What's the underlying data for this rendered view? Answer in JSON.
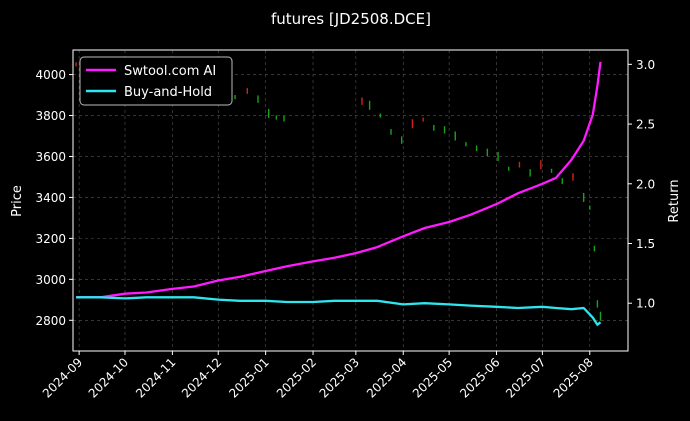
{
  "chart_data": {
    "type": "line",
    "title": "futures [JD2508.DCE]",
    "ylabel_left": "Price",
    "ylabel_right": "Return",
    "ylim_left": [
      2650,
      4120
    ],
    "ylim_right": [
      0.6,
      3.12
    ],
    "xlim": [
      "2024-08-28",
      "2025-08-26"
    ],
    "yticks_left": [
      2800,
      3000,
      3200,
      3400,
      3600,
      3800,
      4000
    ],
    "yticks_right": [
      1.0,
      1.5,
      2.0,
      2.5,
      3.0
    ],
    "yticks_right_labels": [
      "1.0",
      "1.5",
      "2.0",
      "2.5",
      "3.0"
    ],
    "xticks": [
      "2024-09",
      "2024-10",
      "2024-11",
      "2024-12",
      "2025-01",
      "2025-02",
      "2025-03",
      "2025-04",
      "2025-05",
      "2025-06",
      "2025-07",
      "2025-08"
    ],
    "grid": true,
    "legend_position": "top-left",
    "series": [
      {
        "name": "Swtool.com AI",
        "color": "#ff1aff",
        "axis": "right",
        "x": [
          "2024-08-30",
          "2024-09-15",
          "2024-10-01",
          "2024-10-15",
          "2024-11-01",
          "2024-11-15",
          "2024-12-01",
          "2024-12-15",
          "2025-01-01",
          "2025-01-15",
          "2025-02-01",
          "2025-02-15",
          "2025-03-01",
          "2025-03-15",
          "2025-04-01",
          "2025-04-15",
          "2025-05-01",
          "2025-05-15",
          "2025-06-01",
          "2025-06-15",
          "2025-07-01",
          "2025-07-10",
          "2025-07-20",
          "2025-07-28",
          "2025-08-03",
          "2025-08-06",
          "2025-08-08"
        ],
        "values": [
          1.05,
          1.05,
          1.08,
          1.09,
          1.12,
          1.14,
          1.19,
          1.22,
          1.27,
          1.31,
          1.35,
          1.38,
          1.42,
          1.47,
          1.56,
          1.63,
          1.68,
          1.74,
          1.83,
          1.92,
          2.0,
          2.05,
          2.2,
          2.36,
          2.58,
          2.82,
          3.02
        ]
      },
      {
        "name": "Buy-and-Hold",
        "color": "#2ee6f0",
        "axis": "right",
        "x": [
          "2024-08-30",
          "2024-09-15",
          "2024-10-01",
          "2024-10-15",
          "2024-11-01",
          "2024-11-15",
          "2024-12-01",
          "2024-12-15",
          "2025-01-01",
          "2025-01-15",
          "2025-02-01",
          "2025-02-15",
          "2025-03-01",
          "2025-03-15",
          "2025-04-01",
          "2025-04-15",
          "2025-05-01",
          "2025-05-15",
          "2025-06-01",
          "2025-06-15",
          "2025-07-01",
          "2025-07-10",
          "2025-07-20",
          "2025-07-28",
          "2025-08-03",
          "2025-08-06",
          "2025-08-08"
        ],
        "values": [
          1.05,
          1.05,
          1.04,
          1.05,
          1.05,
          1.05,
          1.03,
          1.02,
          1.02,
          1.01,
          1.01,
          1.02,
          1.02,
          1.02,
          0.99,
          1.0,
          0.99,
          0.98,
          0.97,
          0.96,
          0.97,
          0.96,
          0.95,
          0.96,
          0.88,
          0.82,
          0.84
        ]
      }
    ],
    "candles": {
      "axis": "left",
      "up_color": "#d42020",
      "down_color": "#1aa31a",
      "x": [
        "2024-08-30",
        "2024-09-02",
        "2024-11-28",
        "2024-12-05",
        "2024-12-12",
        "2024-12-20",
        "2024-12-27",
        "2025-01-03",
        "2025-01-08",
        "2025-01-13",
        "2025-03-05",
        "2025-03-10",
        "2025-03-17",
        "2025-03-24",
        "2025-03-31",
        "2025-04-07",
        "2025-04-14",
        "2025-04-21",
        "2025-04-28",
        "2025-05-05",
        "2025-05-12",
        "2025-05-19",
        "2025-05-26",
        "2025-06-02",
        "2025-06-09",
        "2025-06-16",
        "2025-06-23",
        "2025-06-30",
        "2025-07-07",
        "2025-07-14",
        "2025-07-21",
        "2025-07-28",
        "2025-08-01",
        "2025-08-04",
        "2025-08-06",
        "2025-08-08"
      ],
      "values": [
        4050,
        4020,
        3900,
        3910,
        3890,
        3920,
        3880,
        3810,
        3790,
        3785,
        3870,
        3850,
        3800,
        3720,
        3680,
        3760,
        3780,
        3740,
        3730,
        3700,
        3660,
        3640,
        3620,
        3600,
        3540,
        3560,
        3520,
        3560,
        3530,
        3480,
        3500,
        3400,
        3350,
        3150,
        2880,
        2820
      ]
    }
  }
}
